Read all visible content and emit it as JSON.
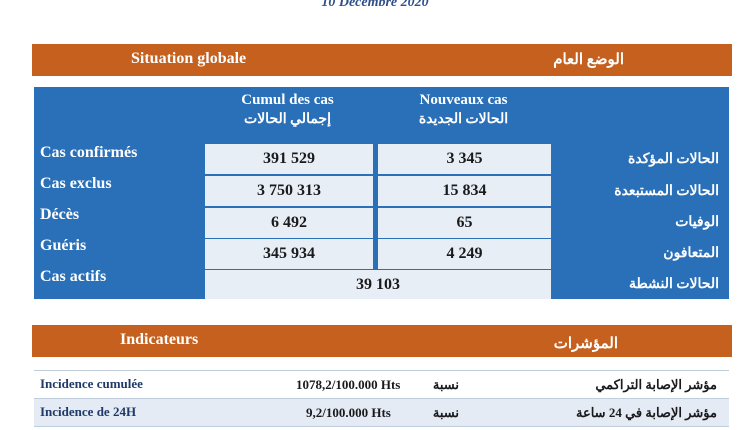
{
  "date": "10 Décembre 2020",
  "situation": {
    "title_fr": "Situation globale",
    "title_ar": "الوضع العام",
    "col_cumul_fr": "Cumul des cas",
    "col_cumul_ar": "إجمالي الحالات",
    "col_new_fr": "Nouveaux cas",
    "col_new_ar": "الحالات الجديدة",
    "rows": [
      {
        "label_fr": "Cas confirmés",
        "label_ar": "الحالات المؤكدة",
        "cumul": "391 529",
        "new": "3 345"
      },
      {
        "label_fr": "Cas exclus",
        "label_ar": "الحالات المستبعدة",
        "cumul": "3 750 313",
        "new": "15 834"
      },
      {
        "label_fr": "Décès",
        "label_ar": "الوفيات",
        "cumul": "6 492",
        "new": "65"
      },
      {
        "label_fr": "Guéris",
        "label_ar": "المتعافون",
        "cumul": "345 934",
        "new": "4 249"
      }
    ],
    "active": {
      "label_fr": "Cas actifs",
      "label_ar": "الحالات النشطة",
      "value": "39 103"
    }
  },
  "indicateurs": {
    "title_fr": "Indicateurs",
    "title_ar": "المؤشرات",
    "rows": [
      {
        "label_fr": "Incidence cumulée",
        "value": "1078,2/100.000 Hts",
        "rate_ar": "نسبة",
        "label_ar": "مؤشر الإصابة التراكمي"
      },
      {
        "label_fr": "Incidence de 24H",
        "value": "9,2/100.000 Hts",
        "rate_ar": "نسبة",
        "label_ar": "مؤشر الإصابة في 24 ساعة"
      }
    ]
  }
}
